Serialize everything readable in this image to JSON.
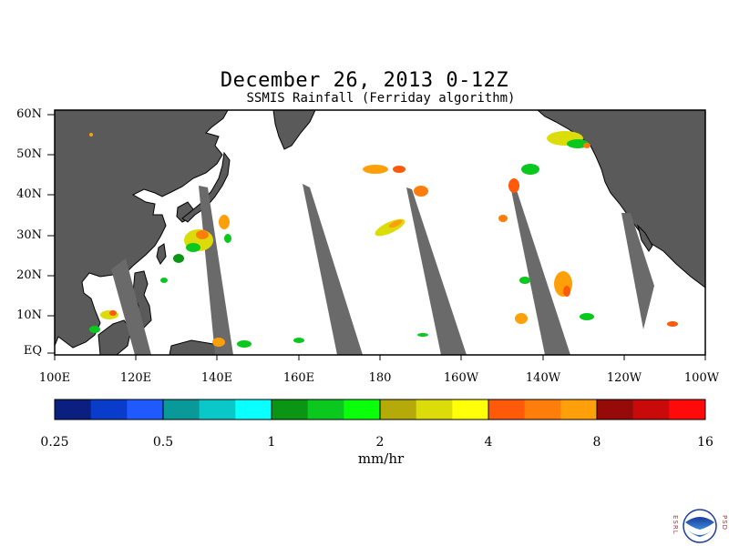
{
  "title": "December 26, 2013 0-12Z",
  "subtitle": "SSMIS Rainfall (Ferriday algorithm)",
  "lat_labels": [
    "60N",
    "50N",
    "40N",
    "30N",
    "20N",
    "10N",
    "EQ"
  ],
  "lon_labels": [
    "100E",
    "120E",
    "140E",
    "160E",
    "180",
    "160W",
    "140W",
    "120W",
    "100W"
  ],
  "colorbar": {
    "colors": [
      "#0a1f80",
      "#0a3ccc",
      "#1f5aff",
      "#0a9999",
      "#0ac8c8",
      "#0affff",
      "#0a9614",
      "#0ac81e",
      "#0aff0a",
      "#b4aa0a",
      "#dcdc0a",
      "#ffff0a",
      "#ff5a0a",
      "#ff7d0a",
      "#ffa00a",
      "#960a0a",
      "#c80a0a",
      "#ff0a0a"
    ],
    "tick_labels": [
      "0.25",
      "0.5",
      "1",
      "2",
      "4",
      "8",
      "16"
    ],
    "units": "mm/hr"
  },
  "colors": {
    "land": "#5a5a5a",
    "ocean": "#ffffff",
    "no_data_swath": "#6a6a6a",
    "border": "#000000"
  },
  "logo": {
    "left_letters": "ESRL",
    "right_letters": "PSD",
    "name": "noaa-logo"
  }
}
